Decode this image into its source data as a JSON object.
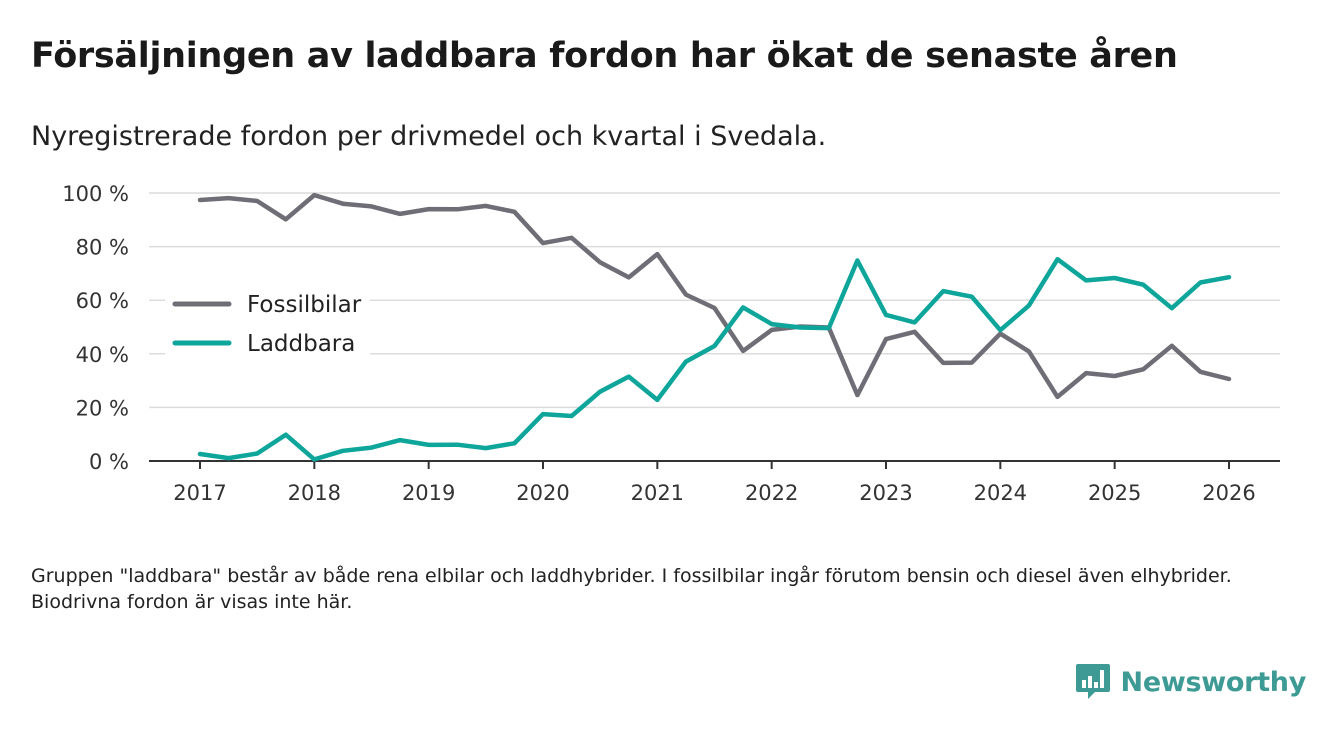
{
  "title": "Försäljningen av laddbara fordon har ökat de senaste åren",
  "subtitle": "Nyregistrerade fordon per drivmedel och kvartal i Svedala.",
  "footnote": "Gruppen \"laddbara\" består av både rena elbilar och laddhybrider. I fossilbilar ingår förutom bensin och diesel även elhybrider. Biodrivna fordon är visas inte här.",
  "brand": {
    "name": "Newsworthy",
    "color": "#3d9a94",
    "logo_icon": "bar-chart-icon"
  },
  "chart_data": {
    "type": "line",
    "x_tick_labels": [
      "2017",
      "2018",
      "2019",
      "2020",
      "2021",
      "2022",
      "2023",
      "2024",
      "2025",
      "2026"
    ],
    "y_tick_labels": [
      "0 %",
      "20 %",
      "40 %",
      "60 %",
      "80 %",
      "100 %"
    ],
    "y_ticks": [
      0,
      20,
      40,
      60,
      80,
      100
    ],
    "xlim": [
      2017,
      2026
    ],
    "ylim": [
      0,
      100
    ],
    "grid": true,
    "legend_position": "left-middle",
    "x": [
      2017,
      2017.25,
      2017.5,
      2017.75,
      2018,
      2018.25,
      2018.5,
      2018.75,
      2019,
      2019.25,
      2019.5,
      2019.75,
      2020,
      2020.25,
      2020.5,
      2020.75,
      2021,
      2021.25,
      2021.5,
      2021.75,
      2022,
      2022.25,
      2022.5,
      2022.75,
      2023,
      2023.25,
      2023.5,
      2023.75,
      2024,
      2024.25,
      2024.5,
      2024.75,
      2025,
      2025.25,
      2025.5,
      2025.75,
      2026
    ],
    "series": [
      {
        "name": "Fossilbilar",
        "color": "#6f6e76",
        "values": [
          97.4,
          98.1,
          97.0,
          90.2,
          99.2,
          96.0,
          95.0,
          92.2,
          94.0,
          93.9,
          95.2,
          93.0,
          81.3,
          83.3,
          74.1,
          68.5,
          77.2,
          62.1,
          57.1,
          41.1,
          48.9,
          50.2,
          49.8,
          24.6,
          45.5,
          48.2,
          36.6,
          36.7,
          47.5,
          40.9,
          23.9,
          32.8,
          31.7,
          34.2,
          43.0,
          33.3,
          30.6
        ]
      },
      {
        "name": "Laddbara",
        "color": "#0ea59b",
        "values": [
          2.6,
          1.1,
          2.8,
          9.8,
          0.6,
          3.8,
          5.0,
          7.8,
          6.0,
          6.1,
          4.8,
          6.6,
          17.5,
          16.8,
          25.9,
          31.5,
          22.8,
          37.1,
          42.9,
          57.3,
          51.1,
          49.8,
          49.6,
          74.8,
          54.5,
          51.7,
          63.4,
          61.3,
          48.8,
          58.0,
          75.3,
          67.4,
          68.3,
          65.8,
          57.0,
          66.6,
          68.6
        ]
      }
    ]
  }
}
